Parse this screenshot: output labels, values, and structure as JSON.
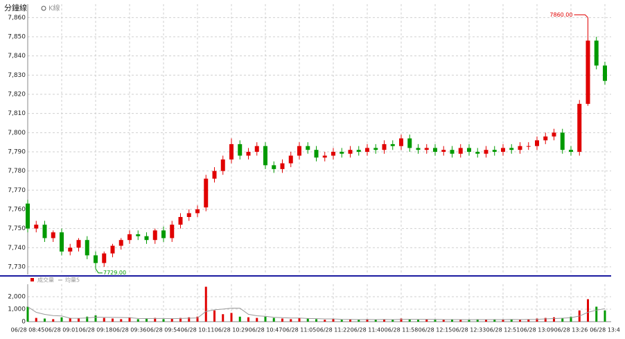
{
  "header": {
    "title": "分鐘線",
    "tab": "K線"
  },
  "chart_data": {
    "type": "candlestick",
    "categories": [
      "06/28 08:45",
      "06/28 09:01",
      "06/28 09:18",
      "06/28 09:36",
      "06/28 09:54",
      "06/28 10:11",
      "06/28 10:29",
      "06/28 10:47",
      "06/28 11:05",
      "06/28 11:22",
      "06/28 11:40",
      "06/28 11:58",
      "06/28 12:15",
      "06/28 12:33",
      "06/28 12:51",
      "06/28 13:09",
      "06/28 13:26",
      "06/28 13:4"
    ],
    "open": [
      7763,
      7750,
      7752,
      7745,
      7748,
      7738,
      7740,
      7744,
      7736,
      7732,
      7737,
      7741,
      7744,
      7747,
      7746,
      7744,
      7749,
      7745,
      7752,
      7756,
      7758,
      7761,
      7776,
      7780,
      7786,
      7794,
      7788,
      7790,
      7793,
      7783,
      7781,
      7784,
      7788,
      7793,
      7791,
      7787,
      7788,
      7790,
      7789,
      7791,
      7790,
      7792,
      7791,
      7794,
      7793,
      7797,
      7792,
      7791,
      7792,
      7790,
      7791,
      7789,
      7792,
      7790,
      7789,
      7791,
      7790,
      7792,
      7791,
      7793,
      7793,
      7796,
      7798,
      7800,
      7791,
      7790,
      7815,
      7848,
      7835
    ],
    "high": [
      7765,
      7754,
      7754,
      7749,
      7750,
      7742,
      7745,
      7746,
      7738,
      7738,
      7742,
      7745,
      7749,
      7749,
      7748,
      7750,
      7751,
      7754,
      7758,
      7760,
      7762,
      7778,
      7782,
      7788,
      7797,
      7796,
      7792,
      7795,
      7795,
      7785,
      7786,
      7790,
      7795,
      7795,
      7793,
      7790,
      7792,
      7792,
      7793,
      7793,
      7794,
      7794,
      7796,
      7796,
      7799,
      7799,
      7794,
      7794,
      7794,
      7793,
      7793,
      7794,
      7794,
      7792,
      7793,
      7793,
      7794,
      7794,
      7795,
      7795,
      7798,
      7800,
      7802,
      7802,
      7793,
      7817,
      7860,
      7850,
      7837
    ],
    "low": [
      7748,
      7748,
      7743,
      7743,
      7736,
      7736,
      7738,
      7734,
      7729,
      7730,
      7735,
      7739,
      7742,
      7744,
      7742,
      7742,
      7743,
      7743,
      7750,
      7754,
      7756,
      7759,
      7774,
      7778,
      7784,
      7786,
      7786,
      7788,
      7781,
      7779,
      7779,
      7782,
      7786,
      7789,
      7785,
      7785,
      7786,
      7787,
      7787,
      7788,
      7788,
      7789,
      7789,
      7791,
      7791,
      7790,
      7789,
      7789,
      7788,
      7788,
      7787,
      7787,
      7788,
      7787,
      7787,
      7788,
      7788,
      7789,
      7789,
      7791,
      7791,
      7794,
      7796,
      7789,
      7788,
      7788,
      7814,
      7833,
      7825
    ],
    "close": [
      7750,
      7752,
      7745,
      7748,
      7738,
      7740,
      7744,
      7736,
      7732,
      7737,
      7741,
      7744,
      7747,
      7746,
      7744,
      7749,
      7745,
      7752,
      7756,
      7758,
      7760,
      7776,
      7780,
      7786,
      7794,
      7788,
      7790,
      7793,
      7783,
      7781,
      7784,
      7788,
      7793,
      7791,
      7787,
      7788,
      7790,
      7789,
      7791,
      7790,
      7792,
      7791,
      7794,
      7793,
      7797,
      7792,
      7791,
      7792,
      7790,
      7791,
      7789,
      7792,
      7790,
      7789,
      7791,
      7790,
      7792,
      7791,
      7793,
      7793,
      7796,
      7798,
      7800,
      7791,
      7790,
      7815,
      7848,
      7835,
      7827
    ],
    "up_color": "#e00000",
    "down_color": "#009a00",
    "ylim": [
      7726,
      7867
    ],
    "yticks": [
      {
        "value": 7730,
        "label": "7,730"
      },
      {
        "value": 7740,
        "label": "7,740"
      },
      {
        "value": 7750,
        "label": "7,750"
      },
      {
        "value": 7760,
        "label": "7,760"
      },
      {
        "value": 7770,
        "label": "7,770"
      },
      {
        "value": 7780,
        "label": "7,780"
      },
      {
        "value": 7790,
        "label": "7,790"
      },
      {
        "value": 7800,
        "label": "7,800"
      },
      {
        "value": 7810,
        "label": "7,810"
      },
      {
        "value": 7820,
        "label": "7,820"
      },
      {
        "value": 7830,
        "label": "7,830"
      },
      {
        "value": 7840,
        "label": "7,840"
      },
      {
        "value": 7850,
        "label": "7,850"
      },
      {
        "value": 7860,
        "label": "7,860"
      }
    ],
    "max_label": "7860.00",
    "min_label": "7729.00",
    "grid": true,
    "volume": {
      "name": "成交量",
      "ma_name": "均量5",
      "ma_color": "#999999",
      "values": [
        1200,
        300,
        250,
        200,
        350,
        300,
        250,
        400,
        500,
        300,
        250,
        200,
        350,
        200,
        250,
        300,
        200,
        250,
        300,
        350,
        400,
        2800,
        900,
        600,
        700,
        400,
        350,
        300,
        400,
        300,
        250,
        200,
        300,
        250,
        200,
        150,
        200,
        150,
        200,
        150,
        200,
        150,
        200,
        150,
        250,
        200,
        150,
        200,
        150,
        150,
        200,
        150,
        150,
        200,
        150,
        200,
        150,
        200,
        150,
        200,
        250,
        300,
        350,
        300,
        400,
        900,
        1800,
        1200,
        900
      ],
      "ma": [
        1200,
        750,
        583,
        488,
        460,
        280,
        270,
        300,
        360,
        350,
        340,
        330,
        320,
        260,
        250,
        260,
        260,
        240,
        260,
        280,
        300,
        820,
        950,
        1010,
        1080,
        1080,
        590,
        470,
        430,
        350,
        320,
        290,
        290,
        260,
        240,
        220,
        220,
        190,
        180,
        170,
        180,
        170,
        180,
        170,
        190,
        190,
        190,
        190,
        190,
        170,
        170,
        170,
        160,
        170,
        170,
        170,
        170,
        180,
        170,
        180,
        190,
        220,
        250,
        280,
        320,
        450,
        750,
        920,
        1040
      ],
      "ylim": [
        0,
        3000
      ],
      "yticks": [
        0,
        {
          "value": 1000,
          "label": "1,000"
        },
        {
          "value": 2000,
          "label": "2,000"
        }
      ]
    }
  }
}
